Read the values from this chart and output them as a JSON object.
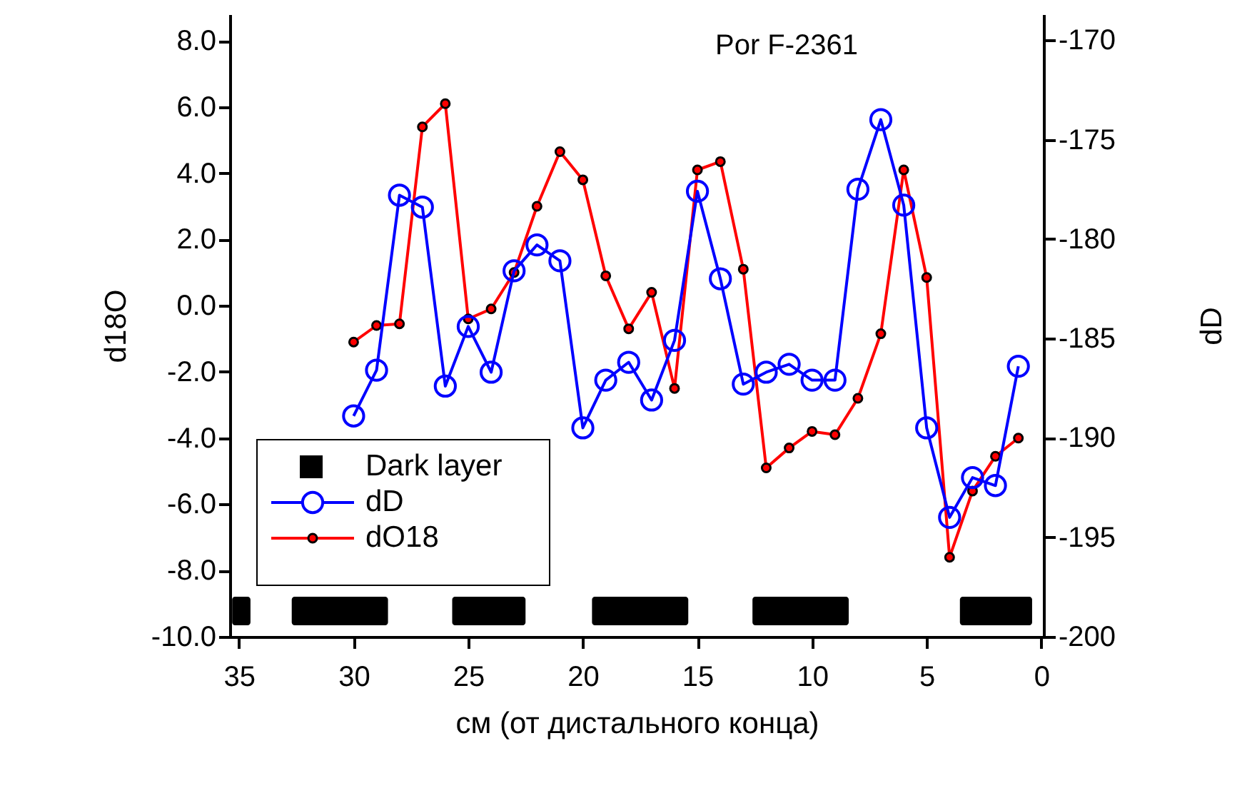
{
  "chart_data": {
    "type": "line",
    "title": "Por F-2361",
    "xlabel": "см (от дистального конца)",
    "ylabel": "d18O",
    "y2label": "dD",
    "x": [
      30,
      29,
      28,
      27,
      26,
      25,
      24,
      23,
      22,
      21,
      20,
      19,
      18,
      17,
      16,
      15,
      14,
      13,
      12,
      11,
      10,
      9,
      8,
      7,
      6,
      5,
      4,
      3,
      2,
      1
    ],
    "series": [
      {
        "name": "dD",
        "color": "#0000ff",
        "axis": "y2",
        "marker": "circle",
        "values": [
          -188.9,
          -186.6,
          -177.8,
          -178.4,
          -187.4,
          -184.4,
          -186.7,
          -181.6,
          -180.3,
          -181.1,
          -189.5,
          -187.1,
          -186.2,
          -188.1,
          -185.1,
          -177.6,
          -182.0,
          -187.3,
          -186.7,
          -186.3,
          -187.1,
          -187.1,
          -177.5,
          -174.0,
          -178.3,
          -189.5,
          -194.0,
          -192.0,
          -192.4,
          -186.4
        ]
      },
      {
        "name": "dO18",
        "color": "#ff0000",
        "axis": "y",
        "marker": "circle",
        "values": [
          -1.1,
          -0.6,
          -0.55,
          5.4,
          6.1,
          -0.4,
          -0.1,
          1.0,
          3.0,
          4.65,
          3.8,
          0.9,
          -0.7,
          0.4,
          -2.5,
          4.1,
          4.35,
          1.1,
          -4.9,
          -4.3,
          -3.8,
          -3.9,
          -2.8,
          -0.85,
          4.1,
          0.85,
          -7.6,
          -5.6,
          -4.55,
          -4.0
        ]
      }
    ],
    "bands": [
      {
        "axis": "x",
        "from": 35.3,
        "to": 34.5,
        "label": "Dark layer",
        "color": "#000000"
      },
      {
        "axis": "x",
        "from": 32.7,
        "to": 28.5,
        "color": "#000000"
      },
      {
        "axis": "x",
        "from": 25.7,
        "to": 22.5,
        "color": "#000000"
      },
      {
        "axis": "x",
        "from": 19.6,
        "to": 15.4,
        "color": "#000000"
      },
      {
        "axis": "x",
        "from": 12.6,
        "to": 8.4,
        "color": "#000000"
      },
      {
        "axis": "x",
        "from": 3.55,
        "to": 0.4,
        "color": "#000000"
      }
    ],
    "xlim": [
      35.4,
      -0.1
    ],
    "xticks": [
      35,
      30,
      25,
      20,
      15,
      10,
      5,
      0
    ],
    "ylim": [
      -10,
      8.8
    ],
    "yticks": [
      {
        "value": -10,
        "label": "-10.0"
      },
      {
        "value": -8,
        "label": "-8.0"
      },
      {
        "value": -6,
        "label": "-6.0"
      },
      {
        "value": -4,
        "label": "-4.0"
      },
      {
        "value": -2,
        "label": "-2.0"
      },
      {
        "value": 0,
        "label": "0.0"
      },
      {
        "value": 2,
        "label": "2.0"
      },
      {
        "value": 4,
        "label": "4.0"
      },
      {
        "value": 6,
        "label": "6.0"
      },
      {
        "value": 8,
        "label": "8.0"
      }
    ],
    "y2lim": [
      -200,
      -168.7
    ],
    "y2ticks": [
      -200,
      -195,
      -190,
      -185,
      -180,
      -175,
      -170
    ],
    "legend": "bottom left",
    "grid": false,
    "line_style": "solid"
  }
}
